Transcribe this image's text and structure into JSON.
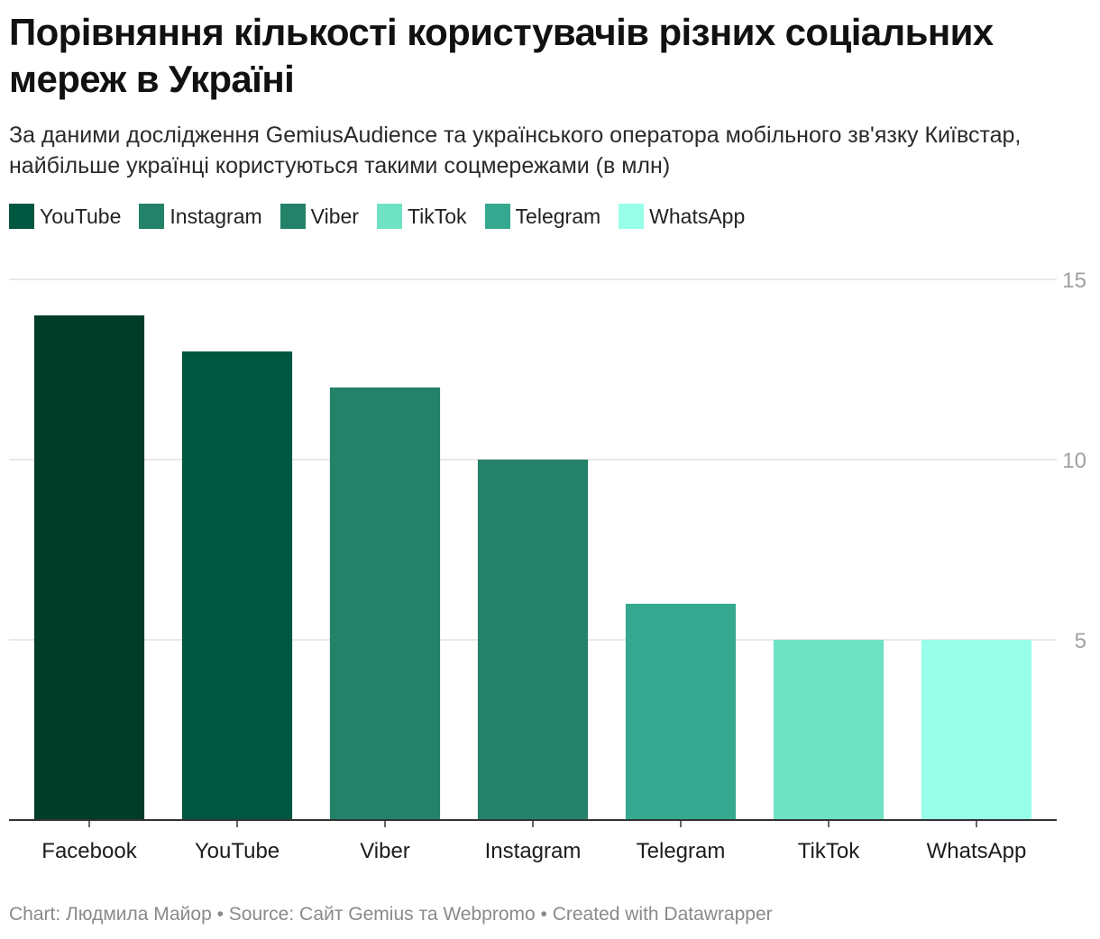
{
  "title": "Порівняння кількості користувачів різних соціальних мереж в Україні",
  "subtitle": "За даними дослідження GemiusAudience та українського оператора мобільного зв'язку Київстар, найбільше українці користуються такими соцмережами (в млн)",
  "legend": [
    {
      "label": "YouTube",
      "color": "#00573f"
    },
    {
      "label": "Instagram",
      "color": "#238268"
    },
    {
      "label": "Viber",
      "color": "#238268"
    },
    {
      "label": "TikTok",
      "color": "#70e2c4"
    },
    {
      "label": "Telegram",
      "color": "#35a990"
    },
    {
      "label": "WhatsApp",
      "color": "#98ffe8"
    }
  ],
  "chart_data": {
    "type": "bar",
    "title": "Порівняння кількості користувачів різних соціальних мереж в Україні",
    "xlabel": "",
    "ylabel": "млн",
    "ylim": [
      0,
      15
    ],
    "yticks": [
      5,
      10,
      15
    ],
    "grid": true,
    "categories": [
      "Facebook",
      "YouTube",
      "Viber",
      "Instagram",
      "Telegram",
      "TikTok",
      "WhatsApp"
    ],
    "values": [
      14,
      13,
      12,
      10,
      6,
      5,
      5
    ],
    "colors": [
      "#003d29",
      "#00573f",
      "#238268",
      "#238268",
      "#35a990",
      "#70e2c4",
      "#98ffe8"
    ]
  },
  "footer": "Chart: Людмила Майор • Source: Сайт Gemius та Webpromo • Created with Datawrapper"
}
